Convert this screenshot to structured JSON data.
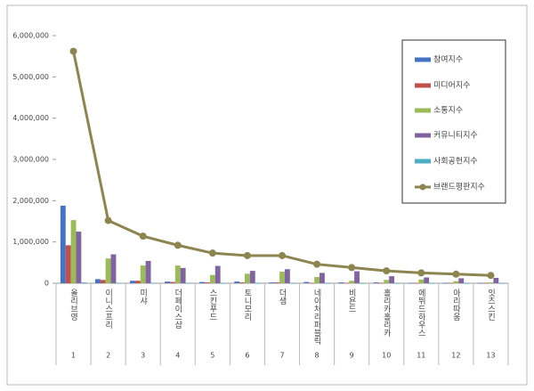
{
  "chart_data": {
    "type": "bar-line",
    "categories": [
      "올리브영",
      "이니스프리",
      "미샤",
      "더페이스샵",
      "스킨푸드",
      "토니모리",
      "더샘",
      "네이처리퍼블릭",
      "비욘드",
      "홀리카홀리카",
      "에뛰드하우스",
      "아리따움",
      "잇츠스킨"
    ],
    "ranks": [
      1,
      2,
      3,
      4,
      5,
      6,
      7,
      8,
      9,
      10,
      11,
      12,
      13
    ],
    "series": [
      {
        "name": "참여지수",
        "color": "#4472c4",
        "kind": "bar",
        "values": [
          1880000,
          100000,
          60000,
          40000,
          30000,
          40000,
          20000,
          30000,
          20000,
          20000,
          10000,
          10000,
          10000
        ]
      },
      {
        "name": "미디어지수",
        "color": "#c0504d",
        "kind": "bar",
        "values": [
          920000,
          80000,
          60000,
          30000,
          20000,
          20000,
          20000,
          10000,
          10000,
          10000,
          10000,
          10000,
          10000
        ]
      },
      {
        "name": "소통지수",
        "color": "#9bbb59",
        "kind": "bar",
        "values": [
          1530000,
          600000,
          430000,
          430000,
          200000,
          230000,
          280000,
          150000,
          60000,
          80000,
          90000,
          50000,
          20000
        ]
      },
      {
        "name": "커뮤니티지수",
        "color": "#8064a2",
        "kind": "bar",
        "values": [
          1250000,
          700000,
          540000,
          370000,
          420000,
          300000,
          340000,
          250000,
          290000,
          170000,
          140000,
          120000,
          130000
        ]
      },
      {
        "name": "사회공헌지수",
        "color": "#4bacc6",
        "kind": "bar",
        "values": [
          20000,
          10000,
          10000,
          10000,
          5000,
          5000,
          5000,
          5000,
          5000,
          5000,
          5000,
          5000,
          5000
        ]
      },
      {
        "name": "브랜드평판지수",
        "color": "#8c8550",
        "kind": "line",
        "values": [
          5620000,
          1520000,
          1140000,
          920000,
          730000,
          670000,
          670000,
          460000,
          380000,
          300000,
          250000,
          220000,
          190000
        ]
      }
    ],
    "ylim": [
      0,
      6000000
    ],
    "yticks": [
      0,
      {
        "value": 1000000,
        "label": "1,000,000"
      },
      {
        "value": 2000000,
        "label": "2,000,000"
      },
      {
        "value": 3000000,
        "label": "3,000,000"
      },
      {
        "value": 4000000,
        "label": "4,000,000"
      },
      {
        "value": 5000000,
        "label": "5,000,000"
      },
      {
        "value": 6000000,
        "label": "6,000,000"
      }
    ],
    "grid": false,
    "legend": "upper right"
  }
}
